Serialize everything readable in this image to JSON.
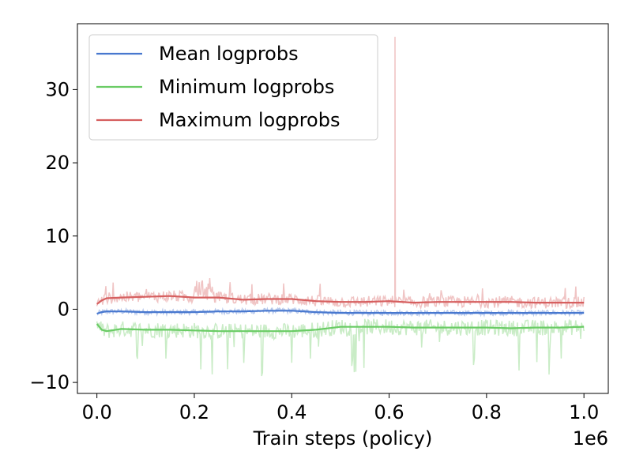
{
  "chart_data": {
    "type": "line",
    "title": "",
    "xlabel": "Train steps (policy)",
    "ylabel": "",
    "x_offset_label": "1e6",
    "xlim": [
      -0.04,
      1.05
    ],
    "ylim": [
      -11.5,
      39
    ],
    "x_ticks": [
      0.0,
      0.2,
      0.4,
      0.6,
      0.8,
      1.0
    ],
    "x_tick_labels": [
      "0.0",
      "0.2",
      "0.4",
      "0.6",
      "0.8",
      "1.0"
    ],
    "y_ticks": [
      -10,
      0,
      10,
      20,
      30
    ],
    "y_tick_labels": [
      "−10",
      "0",
      "10",
      "20",
      "30"
    ],
    "grid": false,
    "legend_position": "top-left",
    "x": [
      0.0,
      0.01,
      0.02,
      0.05,
      0.1,
      0.15,
      0.2,
      0.25,
      0.3,
      0.35,
      0.4,
      0.45,
      0.5,
      0.55,
      0.6,
      0.65,
      0.7,
      0.75,
      0.8,
      0.85,
      0.9,
      0.95,
      1.0
    ],
    "series": [
      {
        "name": "Mean logprobs",
        "color": "#4878cf",
        "raw_color": "#b8c9ec",
        "values": [
          -0.6,
          -0.4,
          -0.3,
          -0.3,
          -0.4,
          -0.4,
          -0.4,
          -0.3,
          -0.3,
          -0.2,
          -0.2,
          -0.4,
          -0.5,
          -0.5,
          -0.5,
          -0.5,
          -0.5,
          -0.5,
          -0.5,
          -0.5,
          -0.5,
          -0.5,
          -0.5
        ]
      },
      {
        "name": "Minimum logprobs",
        "color": "#6acc65",
        "raw_color": "#c9ecc6",
        "values": [
          -2.0,
          -2.8,
          -3.0,
          -2.7,
          -2.8,
          -2.8,
          -2.9,
          -3.0,
          -3.0,
          -3.0,
          -3.0,
          -2.8,
          -2.4,
          -2.4,
          -2.4,
          -2.5,
          -2.5,
          -2.5,
          -2.5,
          -2.6,
          -2.5,
          -2.5,
          -2.4
        ]
      },
      {
        "name": "Maximum logprobs",
        "color": "#d65f5f",
        "raw_color": "#f0c4c4",
        "values": [
          0.7,
          1.2,
          1.5,
          1.6,
          1.7,
          1.8,
          1.6,
          1.6,
          1.3,
          1.4,
          1.4,
          1.1,
          1.0,
          1.0,
          1.1,
          0.9,
          1.0,
          1.0,
          1.0,
          1.0,
          0.9,
          0.9,
          0.9
        ]
      }
    ],
    "annotations": [
      {
        "series": "Maximum logprobs",
        "x": 0.612,
        "y": 37.2,
        "note_type": "spike"
      }
    ]
  }
}
